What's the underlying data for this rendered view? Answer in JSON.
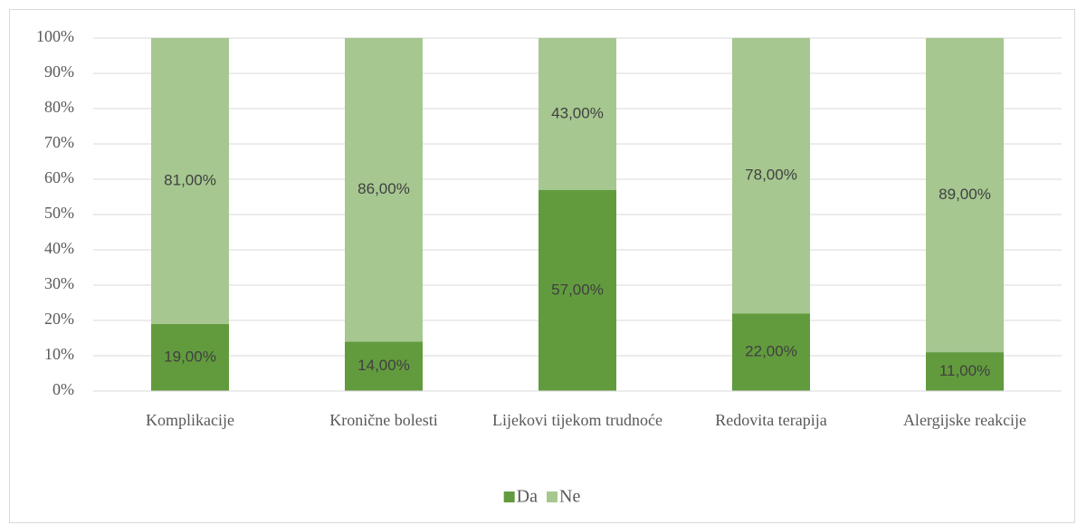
{
  "chart_data": {
    "type": "stacked_bar",
    "categories": [
      "Komplikacije",
      "Kronične bolesti",
      "Lijekovi tijekom trudnoće",
      "Redovita terapija",
      "Alergijske reakcije"
    ],
    "series": [
      {
        "name": "Da",
        "color": "#629b3e",
        "values": [
          19,
          14,
          57,
          22,
          11
        ],
        "value_labels": [
          "19,00%",
          "14,00%",
          "57,00%",
          "22,00%",
          "11,00%"
        ]
      },
      {
        "name": "Ne",
        "color": "#a6c790",
        "values": [
          81,
          86,
          43,
          78,
          89
        ],
        "value_labels": [
          "81,00%",
          "86,00%",
          "43,00%",
          "78,00%",
          "89,00%"
        ]
      }
    ],
    "ylim": [
      0,
      100
    ],
    "yticks": [
      {
        "value": 0,
        "label": "0%"
      },
      {
        "value": 10,
        "label": "10%"
      },
      {
        "value": 20,
        "label": "20%"
      },
      {
        "value": 30,
        "label": "30%"
      },
      {
        "value": 40,
        "label": "40%"
      },
      {
        "value": 50,
        "label": "50%"
      },
      {
        "value": 60,
        "label": "60%"
      },
      {
        "value": 70,
        "label": "70%"
      },
      {
        "value": 80,
        "label": "80%"
      },
      {
        "value": 90,
        "label": "90%"
      },
      {
        "value": 100,
        "label": "100%"
      }
    ],
    "grid": true,
    "legend": "bottom"
  }
}
